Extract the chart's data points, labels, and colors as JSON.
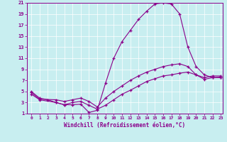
{
  "background_color": "#c8eef0",
  "line_color": "#8b008b",
  "xlabel": "Windchill (Refroidissement éolien,°C)",
  "xlim": [
    0,
    23
  ],
  "ylim": [
    1,
    21
  ],
  "xticks": [
    0,
    1,
    2,
    3,
    4,
    5,
    6,
    7,
    8,
    9,
    10,
    11,
    12,
    13,
    14,
    15,
    16,
    17,
    18,
    19,
    20,
    21,
    22,
    23
  ],
  "yticks": [
    1,
    3,
    5,
    7,
    9,
    11,
    13,
    15,
    17,
    19,
    21
  ],
  "curve1_x": [
    0,
    1,
    2,
    3,
    4,
    5,
    6,
    7,
    8,
    9,
    10,
    11,
    12,
    13,
    14,
    15,
    16,
    17,
    18,
    19,
    20,
    21,
    22,
    23
  ],
  "curve1_y": [
    5,
    3.8,
    3.5,
    3.0,
    2.6,
    2.6,
    2.7,
    1.2,
    1.6,
    6.5,
    11,
    14,
    16,
    18,
    19.5,
    20.8,
    21,
    20.8,
    19,
    13,
    9.5,
    8.0,
    7.5,
    7.5
  ],
  "curve2_x": [
    0,
    1,
    3,
    4,
    5,
    6,
    7,
    8,
    9,
    10,
    11,
    12,
    13,
    14,
    15,
    16,
    17,
    18,
    19,
    20,
    21,
    22,
    23
  ],
  "curve2_y": [
    4.8,
    3.6,
    3.5,
    3.2,
    3.5,
    3.8,
    3.2,
    2.2,
    3.8,
    5.0,
    6.0,
    7.0,
    7.8,
    8.5,
    9.0,
    9.5,
    9.8,
    10.0,
    9.5,
    8.0,
    7.5,
    7.8,
    7.8
  ],
  "curve3_x": [
    0,
    1,
    3,
    4,
    5,
    6,
    7,
    8,
    9,
    10,
    11,
    12,
    13,
    14,
    15,
    16,
    17,
    18,
    19,
    20,
    21,
    22,
    23
  ],
  "curve3_y": [
    4.5,
    3.5,
    3.0,
    2.6,
    3.0,
    3.2,
    2.5,
    1.8,
    2.5,
    3.5,
    4.5,
    5.2,
    6.0,
    6.8,
    7.3,
    7.8,
    8.0,
    8.3,
    8.5,
    8.0,
    7.2,
    7.5,
    7.6
  ]
}
